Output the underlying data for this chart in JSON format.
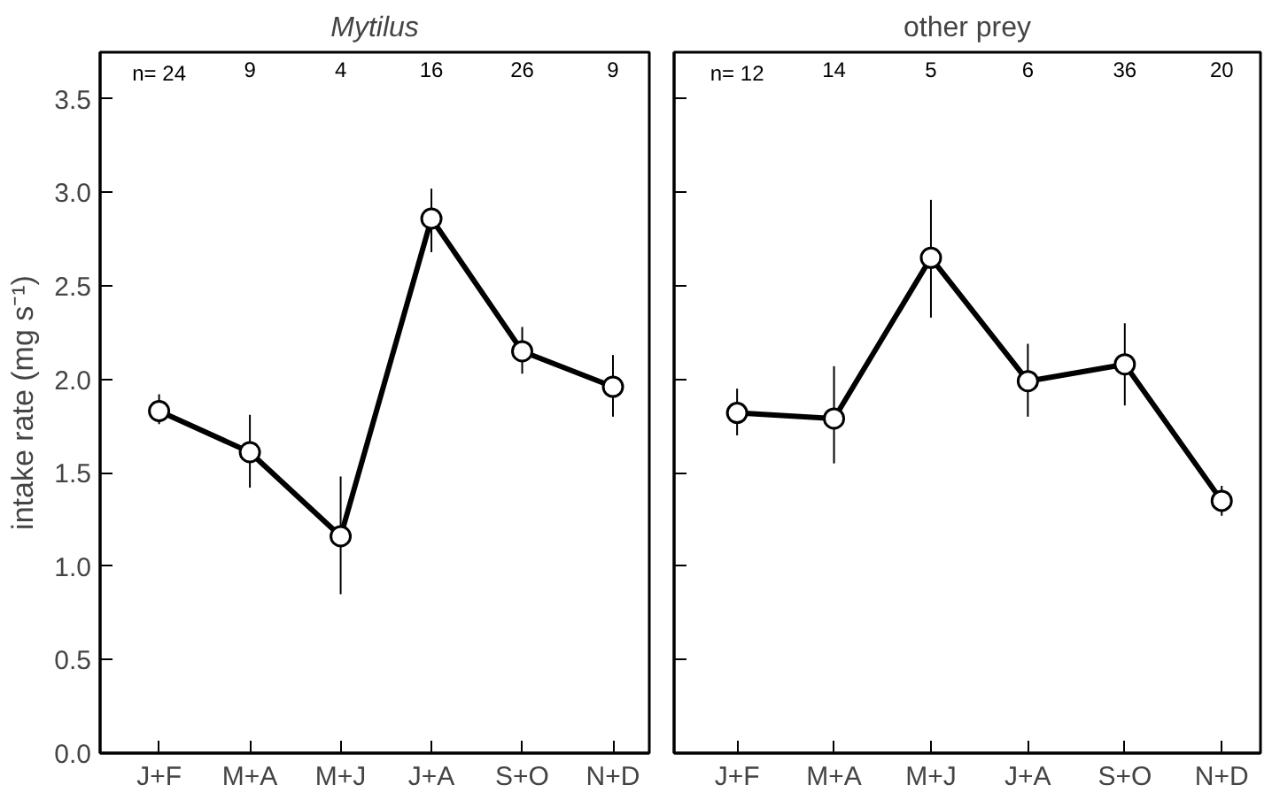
{
  "chart_data": [
    {
      "type": "line",
      "title": "Mytilus",
      "ylabel": "intake rate (mg s⁻¹)",
      "categories": [
        "J+F",
        "M+A",
        "M+J",
        "J+A",
        "S+O",
        "N+D"
      ],
      "values": [
        1.83,
        1.61,
        1.16,
        2.86,
        2.15,
        1.96
      ],
      "errors": [
        [
          1.76,
          1.92
        ],
        [
          1.42,
          1.81
        ],
        [
          0.85,
          1.48
        ],
        [
          2.68,
          3.02
        ],
        [
          2.03,
          2.28
        ],
        [
          1.8,
          2.13
        ]
      ],
      "color": "#000000",
      "marker": "circle",
      "line_style": "solid",
      "grid": false,
      "ylim": [
        0,
        3.75
      ],
      "yticks": [
        {
          "value": 0,
          "label": "0.0"
        },
        0.5,
        {
          "value": 1,
          "label": "1.0"
        },
        1.5,
        {
          "value": 2,
          "label": "2.0"
        },
        2.5,
        {
          "value": 3,
          "label": "3.0"
        },
        3.5
      ],
      "annotations": [
        "n= 24",
        "9",
        "4",
        "16",
        "26",
        "9"
      ]
    },
    {
      "type": "line",
      "title": "other prey",
      "categories": [
        "J+F",
        "M+A",
        "M+J",
        "J+A",
        "S+O",
        "N+D"
      ],
      "values": [
        1.82,
        1.79,
        2.65,
        1.99,
        2.08,
        1.35
      ],
      "errors": [
        [
          1.7,
          1.95
        ],
        [
          1.55,
          2.07
        ],
        [
          2.33,
          2.96
        ],
        [
          1.8,
          2.19
        ],
        [
          1.86,
          2.3
        ],
        [
          1.27,
          1.43
        ]
      ],
      "color": "#000000",
      "marker": "circle",
      "line_style": "solid",
      "grid": false,
      "tick_labels": "x",
      "ylim": [
        0,
        3.75
      ],
      "yticks": [
        0,
        0.5,
        1,
        1.5,
        2,
        2.5,
        3,
        3.5
      ],
      "annotations": [
        "n= 12",
        "14",
        "5",
        "6",
        "36",
        "20"
      ]
    }
  ]
}
